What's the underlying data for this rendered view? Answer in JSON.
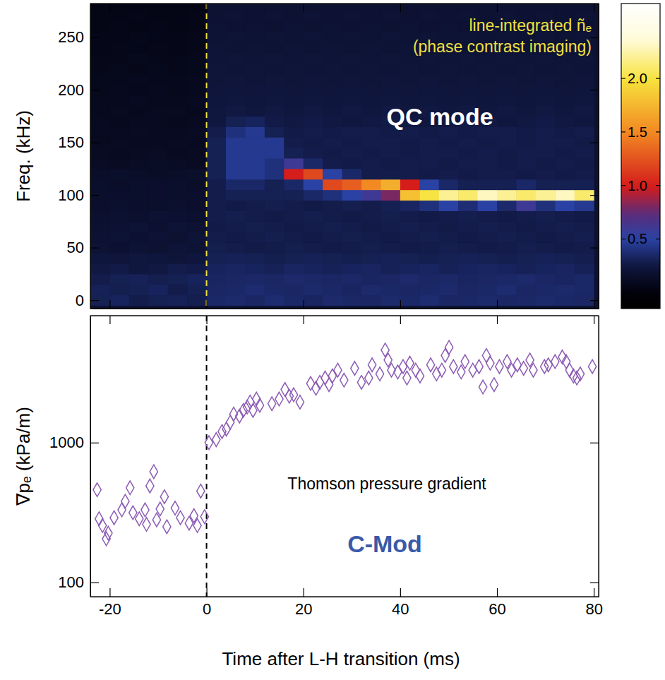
{
  "chart_data": [
    {
      "type": "heatmap",
      "y_label": "Freq. (kHz)",
      "annotations": [
        {
          "text": "line-integrated ñₑ",
          "color": "#f0e040"
        },
        {
          "text": "(phase contrast imaging)",
          "color": "#f0e040"
        },
        {
          "text": "QC mode",
          "color": "#ffffff"
        },
        {
          "x": 0,
          "line_style": "dashed",
          "color": "#f0e040"
        }
      ],
      "x": [
        -22,
        -18,
        -14,
        -10,
        -6,
        -2,
        2,
        6,
        10,
        14,
        18,
        22,
        26,
        30,
        34,
        38,
        42,
        46,
        50,
        54,
        58,
        62,
        66,
        70,
        74,
        78
      ],
      "y": [
        0,
        10,
        20,
        30,
        40,
        50,
        60,
        70,
        80,
        90,
        100,
        110,
        120,
        130,
        140,
        150,
        160,
        170,
        180,
        190,
        200,
        210,
        220,
        230,
        240,
        250,
        260,
        270,
        280
      ],
      "values": [
        [
          0.3,
          0.32,
          0.28,
          0.3,
          0.31,
          0.29,
          0.35,
          0.36,
          0.34,
          0.37,
          0.35,
          0.33,
          0.36,
          0.35,
          0.34,
          0.36,
          0.35,
          0.37,
          0.34,
          0.35,
          0.36,
          0.34,
          0.35,
          0.36,
          0.35,
          0.34
        ],
        [
          0.31,
          0.29,
          0.3,
          0.32,
          0.28,
          0.3,
          0.34,
          0.35,
          0.37,
          0.35,
          0.34,
          0.36,
          0.35,
          0.33,
          0.36,
          0.35,
          0.34,
          0.35,
          0.36,
          0.34,
          0.35,
          0.37,
          0.34,
          0.35,
          0.36,
          0.35
        ],
        [
          0.28,
          0.3,
          0.31,
          0.29,
          0.3,
          0.32,
          0.33,
          0.34,
          0.35,
          0.34,
          0.36,
          0.35,
          0.34,
          0.35,
          0.33,
          0.34,
          0.36,
          0.34,
          0.35,
          0.33,
          0.34,
          0.35,
          0.36,
          0.34,
          0.33,
          0.35
        ],
        [
          0.26,
          0.27,
          0.25,
          0.26,
          0.28,
          0.27,
          0.32,
          0.33,
          0.32,
          0.31,
          0.33,
          0.32,
          0.31,
          0.32,
          0.33,
          0.31,
          0.32,
          0.33,
          0.31,
          0.32,
          0.33,
          0.32,
          0.31,
          0.32,
          0.33,
          0.31
        ],
        [
          0.24,
          0.23,
          0.25,
          0.24,
          0.22,
          0.24,
          0.3,
          0.31,
          0.3,
          0.29,
          0.3,
          0.31,
          0.3,
          0.29,
          0.3,
          0.31,
          0.3,
          0.29,
          0.3,
          0.31,
          0.3,
          0.29,
          0.3,
          0.31,
          0.3,
          0.29
        ],
        [
          0.2,
          0.18,
          0.2,
          0.19,
          0.21,
          0.2,
          0.29,
          0.28,
          0.27,
          0.28,
          0.29,
          0.28,
          0.27,
          0.28,
          0.29,
          0.28,
          0.27,
          0.28,
          0.29,
          0.28,
          0.27,
          0.28,
          0.29,
          0.28,
          0.27,
          0.28
        ],
        [
          0.19,
          0.2,
          0.18,
          0.2,
          0.19,
          0.21,
          0.28,
          0.27,
          0.28,
          0.29,
          0.28,
          0.27,
          0.28,
          0.29,
          0.28,
          0.27,
          0.28,
          0.29,
          0.28,
          0.27,
          0.28,
          0.29,
          0.28,
          0.27,
          0.28,
          0.29
        ],
        [
          0.18,
          0.19,
          0.2,
          0.18,
          0.2,
          0.19,
          0.27,
          0.28,
          0.29,
          0.28,
          0.27,
          0.28,
          0.29,
          0.28,
          0.27,
          0.28,
          0.29,
          0.28,
          0.27,
          0.28,
          0.29,
          0.28,
          0.27,
          0.28,
          0.29,
          0.28
        ],
        [
          0.17,
          0.18,
          0.17,
          0.19,
          0.18,
          0.17,
          0.28,
          0.29,
          0.28,
          0.27,
          0.28,
          0.29,
          0.28,
          0.27,
          0.28,
          0.29,
          0.28,
          0.27,
          0.28,
          0.29,
          0.28,
          0.27,
          0.28,
          0.29,
          0.28,
          0.27
        ],
        [
          0.16,
          0.17,
          0.16,
          0.15,
          0.17,
          0.16,
          0.28,
          0.27,
          0.28,
          0.29,
          0.28,
          0.27,
          0.28,
          0.29,
          0.28,
          0.3,
          0.33,
          0.4,
          0.5,
          0.38,
          0.5,
          0.36,
          0.6,
          0.4,
          0.5,
          0.45
        ],
        [
          0.15,
          0.16,
          0.15,
          0.16,
          0.15,
          0.16,
          0.28,
          0.3,
          0.3,
          0.3,
          0.3,
          0.35,
          0.4,
          0.5,
          0.6,
          0.8,
          1.8,
          2.0,
          2.2,
          2.1,
          2.3,
          2.2,
          2.1,
          2.2,
          2.3,
          2.1
        ],
        [
          0.15,
          0.14,
          0.15,
          0.16,
          0.15,
          0.14,
          0.28,
          0.35,
          0.35,
          0.3,
          0.35,
          0.5,
          1.2,
          1.3,
          1.5,
          1.7,
          1.0,
          0.5,
          0.35,
          0.3,
          0.3,
          0.3,
          0.35,
          0.3,
          0.3,
          0.3
        ],
        [
          0.14,
          0.15,
          0.14,
          0.13,
          0.14,
          0.15,
          0.3,
          0.45,
          0.45,
          0.4,
          1.0,
          1.2,
          0.5,
          0.35,
          0.28,
          0.28,
          0.28,
          0.27,
          0.28,
          0.27,
          0.28,
          0.28,
          0.27,
          0.28,
          0.27,
          0.28
        ],
        [
          0.12,
          0.11,
          0.12,
          0.13,
          0.12,
          0.11,
          0.3,
          0.45,
          0.45,
          0.4,
          0.6,
          0.35,
          0.28,
          0.27,
          0.28,
          0.27,
          0.28,
          0.28,
          0.27,
          0.28,
          0.28,
          0.27,
          0.28,
          0.27,
          0.28,
          0.27
        ],
        [
          0.11,
          0.1,
          0.11,
          0.12,
          0.1,
          0.11,
          0.3,
          0.45,
          0.45,
          0.45,
          0.3,
          0.28,
          0.27,
          0.28,
          0.27,
          0.28,
          0.27,
          0.28,
          0.28,
          0.27,
          0.28,
          0.27,
          0.28,
          0.28,
          0.27,
          0.28
        ],
        [
          0.1,
          0.11,
          0.1,
          0.1,
          0.11,
          0.1,
          0.3,
          0.45,
          0.45,
          0.45,
          0.28,
          0.27,
          0.28,
          0.27,
          0.28,
          0.28,
          0.27,
          0.28,
          0.27,
          0.28,
          0.27,
          0.28,
          0.27,
          0.28,
          0.28,
          0.27
        ],
        [
          0.1,
          0.1,
          0.11,
          0.1,
          0.1,
          0.11,
          0.28,
          0.4,
          0.45,
          0.3,
          0.27,
          0.28,
          0.27,
          0.28,
          0.28,
          0.27,
          0.28,
          0.27,
          0.28,
          0.27,
          0.28,
          0.28,
          0.27,
          0.28,
          0.27,
          0.28
        ],
        [
          0.1,
          0.09,
          0.1,
          0.1,
          0.09,
          0.1,
          0.25,
          0.3,
          0.32,
          0.27,
          0.26,
          0.27,
          0.26,
          0.25,
          0.26,
          0.27,
          0.26,
          0.25,
          0.26,
          0.27,
          0.26,
          0.25,
          0.26,
          0.27,
          0.26,
          0.25
        ],
        [
          0.09,
          0.1,
          0.09,
          0.1,
          0.1,
          0.09,
          0.25,
          0.26,
          0.25,
          0.26,
          0.25,
          0.26,
          0.25,
          0.26,
          0.25,
          0.26,
          0.25,
          0.26,
          0.25,
          0.26,
          0.25,
          0.26,
          0.25,
          0.26,
          0.25,
          0.26
        ],
        [
          0.09,
          0.09,
          0.1,
          0.09,
          0.09,
          0.1,
          0.24,
          0.25,
          0.24,
          0.25,
          0.24,
          0.25,
          0.24,
          0.25,
          0.24,
          0.25,
          0.24,
          0.25,
          0.24,
          0.25,
          0.24,
          0.25,
          0.24,
          0.25,
          0.24,
          0.25
        ],
        [
          0.08,
          0.09,
          0.08,
          0.09,
          0.08,
          0.09,
          0.23,
          0.24,
          0.23,
          0.24,
          0.23,
          0.24,
          0.23,
          0.24,
          0.23,
          0.24,
          0.23,
          0.24,
          0.23,
          0.24,
          0.23,
          0.24,
          0.23,
          0.24,
          0.23,
          0.24
        ],
        [
          0.08,
          0.08,
          0.09,
          0.08,
          0.08,
          0.09,
          0.22,
          0.23,
          0.22,
          0.23,
          0.22,
          0.23,
          0.22,
          0.23,
          0.22,
          0.23,
          0.22,
          0.23,
          0.22,
          0.23,
          0.22,
          0.23,
          0.22,
          0.23,
          0.22,
          0.23
        ],
        [
          0.07,
          0.08,
          0.07,
          0.08,
          0.07,
          0.08,
          0.22,
          0.21,
          0.22,
          0.21,
          0.22,
          0.21,
          0.22,
          0.21,
          0.22,
          0.21,
          0.22,
          0.21,
          0.22,
          0.21,
          0.22,
          0.21,
          0.22,
          0.21,
          0.22,
          0.21
        ],
        [
          0.07,
          0.07,
          0.08,
          0.07,
          0.07,
          0.08,
          0.21,
          0.22,
          0.21,
          0.22,
          0.21,
          0.22,
          0.21,
          0.22,
          0.21,
          0.22,
          0.21,
          0.22,
          0.21,
          0.22,
          0.21,
          0.22,
          0.21,
          0.22,
          0.21,
          0.22
        ],
        [
          0.06,
          0.07,
          0.06,
          0.07,
          0.06,
          0.07,
          0.21,
          0.2,
          0.21,
          0.2,
          0.21,
          0.2,
          0.21,
          0.2,
          0.21,
          0.2,
          0.21,
          0.2,
          0.21,
          0.2,
          0.21,
          0.2,
          0.21,
          0.2,
          0.21,
          0.2
        ],
        [
          0.06,
          0.06,
          0.07,
          0.06,
          0.06,
          0.07,
          0.2,
          0.21,
          0.2,
          0.21,
          0.2,
          0.21,
          0.2,
          0.21,
          0.2,
          0.21,
          0.2,
          0.21,
          0.2,
          0.21,
          0.2,
          0.21,
          0.2,
          0.21,
          0.2,
          0.21
        ],
        [
          0.05,
          0.06,
          0.05,
          0.06,
          0.05,
          0.06,
          0.2,
          0.19,
          0.2,
          0.19,
          0.2,
          0.19,
          0.2,
          0.19,
          0.2,
          0.19,
          0.2,
          0.19,
          0.2,
          0.19,
          0.2,
          0.19,
          0.2,
          0.19,
          0.2,
          0.19
        ],
        [
          0.05,
          0.05,
          0.06,
          0.05,
          0.05,
          0.06,
          0.19,
          0.2,
          0.19,
          0.2,
          0.19,
          0.2,
          0.19,
          0.2,
          0.19,
          0.2,
          0.19,
          0.2,
          0.19,
          0.2,
          0.19,
          0.2,
          0.19,
          0.2,
          0.19,
          0.2
        ],
        [
          0.05,
          0.05,
          0.05,
          0.05,
          0.05,
          0.05,
          0.19,
          0.19,
          0.19,
          0.19,
          0.19,
          0.19,
          0.19,
          0.19,
          0.19,
          0.19,
          0.19,
          0.19,
          0.19,
          0.19,
          0.19,
          0.19,
          0.19,
          0.19,
          0.19,
          0.19
        ]
      ],
      "xlim": [
        -24,
        81
      ],
      "ylim": [
        -8,
        282
      ],
      "xticks": [
        -20,
        0,
        20,
        40,
        60,
        80
      ],
      "yticks": [
        0,
        50,
        100,
        150,
        200,
        250
      ],
      "tick_labels": "y",
      "colorbar": {
        "range": [
          -0.15,
          2.7
        ],
        "ticks": [
          0.5,
          {
            "value": 1,
            "label": "1.0"
          },
          1.5,
          {
            "value": 2,
            "label": "2.0"
          }
        ]
      }
    },
    {
      "type": "scatter",
      "marker": "diamond",
      "color": "#8c5cb4",
      "log": "y",
      "x_label": "Time after L-H transition (ms)",
      "y_label": "∇pₑ (kPa/m)",
      "annotations": [
        {
          "text": "Thomson pressure gradient",
          "color": "#000000"
        },
        {
          "text": "C-Mod",
          "color": "#3a5aa8"
        },
        {
          "x": 0,
          "line_style": "dashed",
          "color": "#000000"
        }
      ],
      "x": [
        -22.6,
        -22.2,
        -21.5,
        -20.7,
        -20.3,
        -19.1,
        -17.5,
        -16.8,
        -15.8,
        -15.2,
        -13.9,
        -12.7,
        -12.4,
        -11.7,
        -10.9,
        -10.3,
        -9.6,
        -8.7,
        -8.2,
        -6.5,
        -5.4,
        -3.6,
        -2.6,
        -1.9,
        -1.2,
        -0.4,
        0.5,
        2.0,
        3.2,
        4.1,
        4.9,
        5.6,
        6.8,
        7.6,
        8.4,
        9.0,
        9.6,
        10.3,
        11.0,
        13.5,
        15.0,
        16.2,
        17.1,
        18.0,
        19.3,
        21.5,
        22.6,
        23.4,
        24.5,
        25.3,
        26.0,
        27.1,
        28.4,
        30.6,
        32.0,
        33.5,
        34.2,
        35.8,
        36.9,
        37.5,
        38.2,
        39.5,
        40.6,
        41.4,
        42.0,
        43.2,
        44.1,
        46.3,
        47.5,
        48.6,
        49.3,
        50.1,
        51.0,
        52.6,
        53.4,
        55.0,
        56.3,
        57.1,
        57.8,
        58.6,
        59.4,
        60.5,
        62.1,
        63.0,
        64.2,
        65.5,
        66.8,
        67.5,
        69.8,
        70.6,
        72.0,
        73.5,
        74.3,
        75.0,
        75.8,
        76.5,
        77.2,
        79.7
      ],
      "values": [
        460,
        285,
        255,
        205,
        225,
        290,
        330,
        380,
        475,
        315,
        285,
        330,
        260,
        490,
        620,
        280,
        335,
        410,
        250,
        340,
        290,
        265,
        300,
        255,
        450,
        295,
        1000,
        1050,
        1200,
        1250,
        1400,
        1600,
        1550,
        1700,
        1800,
        1950,
        1700,
        2050,
        1850,
        1900,
        2050,
        2400,
        2150,
        2200,
        1950,
        2650,
        2450,
        2700,
        2900,
        2600,
        3000,
        3300,
        2800,
        3400,
        2700,
        2900,
        3600,
        3100,
        4600,
        3900,
        3300,
        3200,
        3500,
        2900,
        3700,
        3300,
        3000,
        3600,
        3100,
        3300,
        4200,
        4800,
        3500,
        3200,
        3800,
        3300,
        3500,
        2500,
        4200,
        3700,
        2600,
        3500,
        3800,
        3300,
        3600,
        3400,
        3900,
        3300,
        3500,
        3600,
        3800,
        4100,
        3800,
        3300,
        3000,
        2900,
        3100,
        3500
      ],
      "xlim": [
        -24,
        81
      ],
      "ylim": [
        79,
        8100
      ],
      "xticks": [
        -20,
        0,
        20,
        40,
        60,
        80
      ],
      "yticks": [
        100,
        1000
      ]
    }
  ]
}
